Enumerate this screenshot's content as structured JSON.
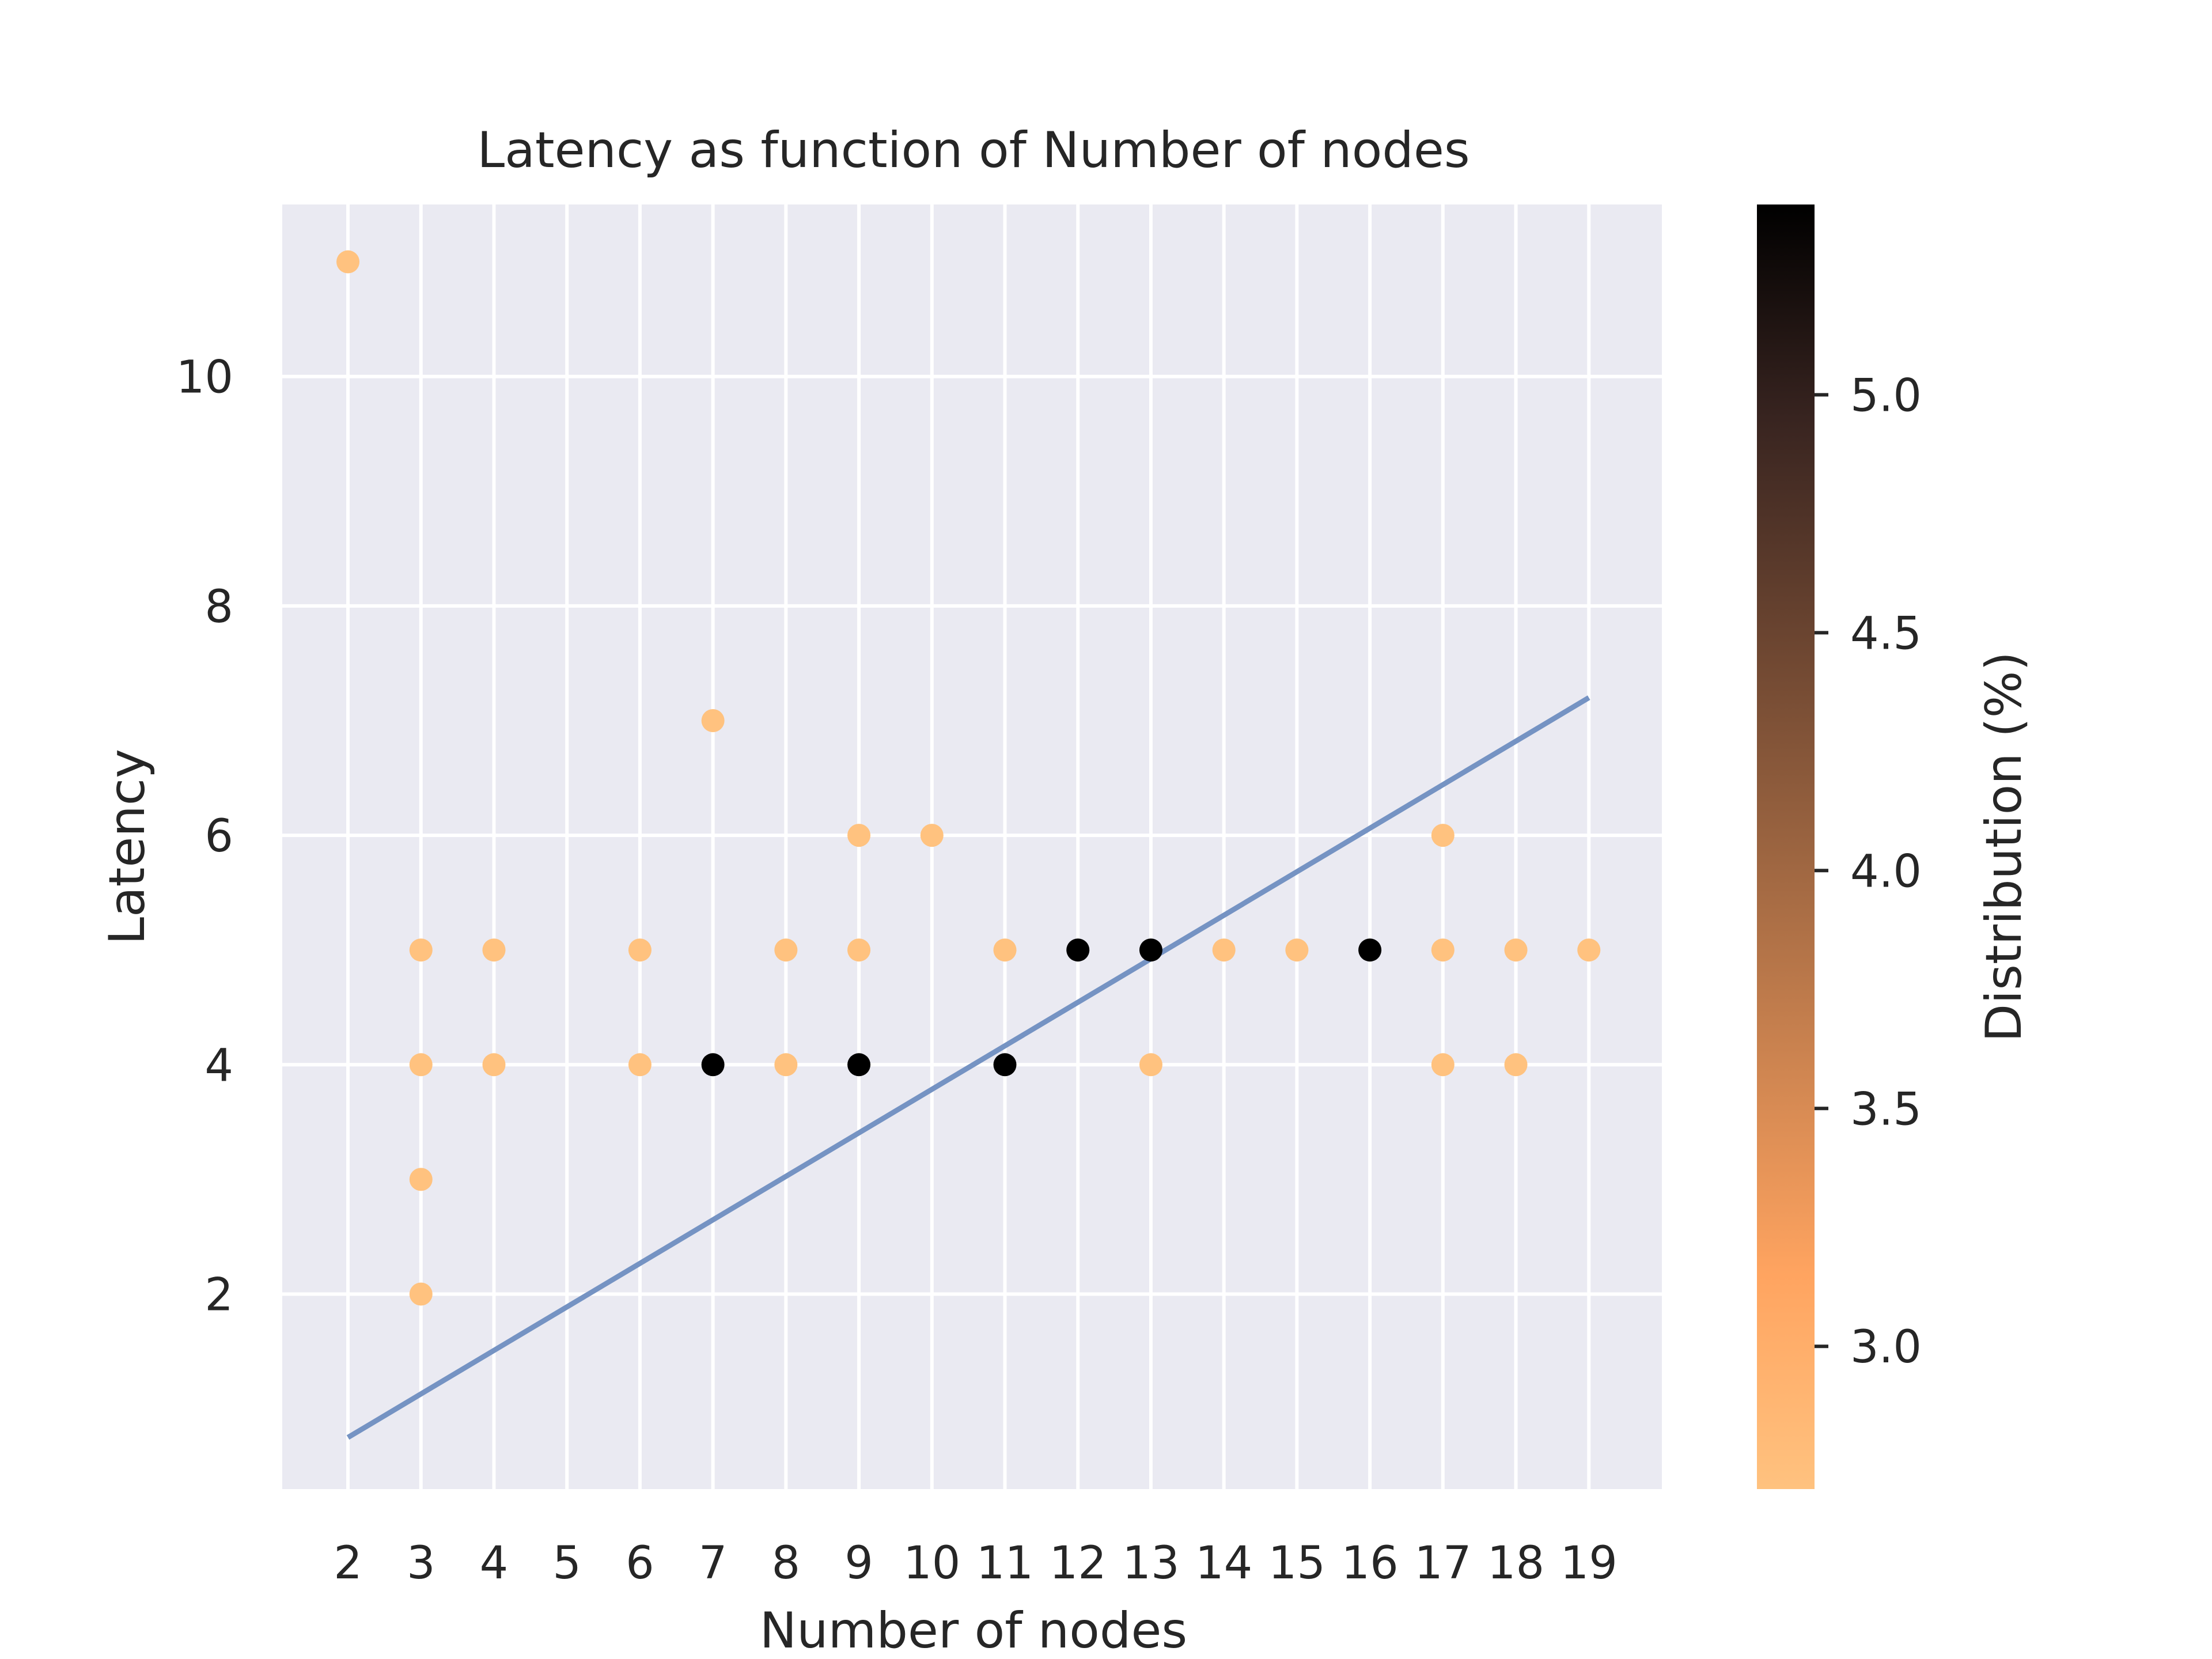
{
  "chart_data": {
    "type": "scatter",
    "title": "Latency as function of Number of nodes",
    "xlabel": "Number of nodes",
    "ylabel": "Latency",
    "xlim": [
      1.1,
      20.0
    ],
    "ylim": [
      0.3,
      11.5
    ],
    "x_ticks": [
      2,
      3,
      4,
      5,
      6,
      7,
      8,
      9,
      10,
      11,
      12,
      13,
      14,
      15,
      16,
      17,
      18,
      19
    ],
    "y_ticks": [
      2,
      4,
      6,
      8,
      10
    ],
    "grid": true,
    "points": [
      {
        "x": 2,
        "y": 11,
        "c": 2.7
      },
      {
        "x": 3,
        "y": 5,
        "c": 2.7
      },
      {
        "x": 3,
        "y": 4,
        "c": 2.7
      },
      {
        "x": 3,
        "y": 3,
        "c": 2.7
      },
      {
        "x": 3,
        "y": 2,
        "c": 2.7
      },
      {
        "x": 4,
        "y": 5,
        "c": 2.7
      },
      {
        "x": 4,
        "y": 4,
        "c": 2.7
      },
      {
        "x": 6,
        "y": 5,
        "c": 2.7
      },
      {
        "x": 6,
        "y": 4,
        "c": 2.7
      },
      {
        "x": 7,
        "y": 7,
        "c": 2.7
      },
      {
        "x": 7,
        "y": 4,
        "c": 5.4
      },
      {
        "x": 8,
        "y": 5,
        "c": 2.7
      },
      {
        "x": 8,
        "y": 4,
        "c": 2.7
      },
      {
        "x": 9,
        "y": 6,
        "c": 2.7
      },
      {
        "x": 9,
        "y": 5,
        "c": 2.7
      },
      {
        "x": 9,
        "y": 4,
        "c": 5.4
      },
      {
        "x": 10,
        "y": 6,
        "c": 2.7
      },
      {
        "x": 11,
        "y": 5,
        "c": 2.7
      },
      {
        "x": 11,
        "y": 4,
        "c": 5.4
      },
      {
        "x": 12,
        "y": 5,
        "c": 5.4
      },
      {
        "x": 13,
        "y": 5,
        "c": 5.4
      },
      {
        "x": 13,
        "y": 4,
        "c": 2.7
      },
      {
        "x": 14,
        "y": 5,
        "c": 2.7
      },
      {
        "x": 15,
        "y": 5,
        "c": 2.7
      },
      {
        "x": 16,
        "y": 5,
        "c": 5.4
      },
      {
        "x": 17,
        "y": 6,
        "c": 2.7
      },
      {
        "x": 17,
        "y": 5,
        "c": 2.7
      },
      {
        "x": 17,
        "y": 4,
        "c": 2.7
      },
      {
        "x": 18,
        "y": 5,
        "c": 2.7
      },
      {
        "x": 18,
        "y": 4,
        "c": 2.7
      },
      {
        "x": 19,
        "y": 5,
        "c": 2.7
      }
    ],
    "trend_line": {
      "x": [
        2,
        19
      ],
      "y": [
        0.75,
        7.2
      ],
      "color": "#7593c3"
    },
    "colorbar": {
      "label": "Distribution (%)",
      "range": [
        2.7,
        5.4
      ],
      "ticks": [
        "3.0",
        "3.5",
        "4.0",
        "4.5",
        "5.0"
      ],
      "colors": [
        "#ffc27f",
        "#ffa460",
        "#cd8450",
        "#9b6440",
        "#6a4430",
        "#382420",
        "#000000"
      ]
    },
    "point_color_low": "#ffc27f",
    "point_color_high": "#000000",
    "background_color": "#eaeaf2"
  }
}
